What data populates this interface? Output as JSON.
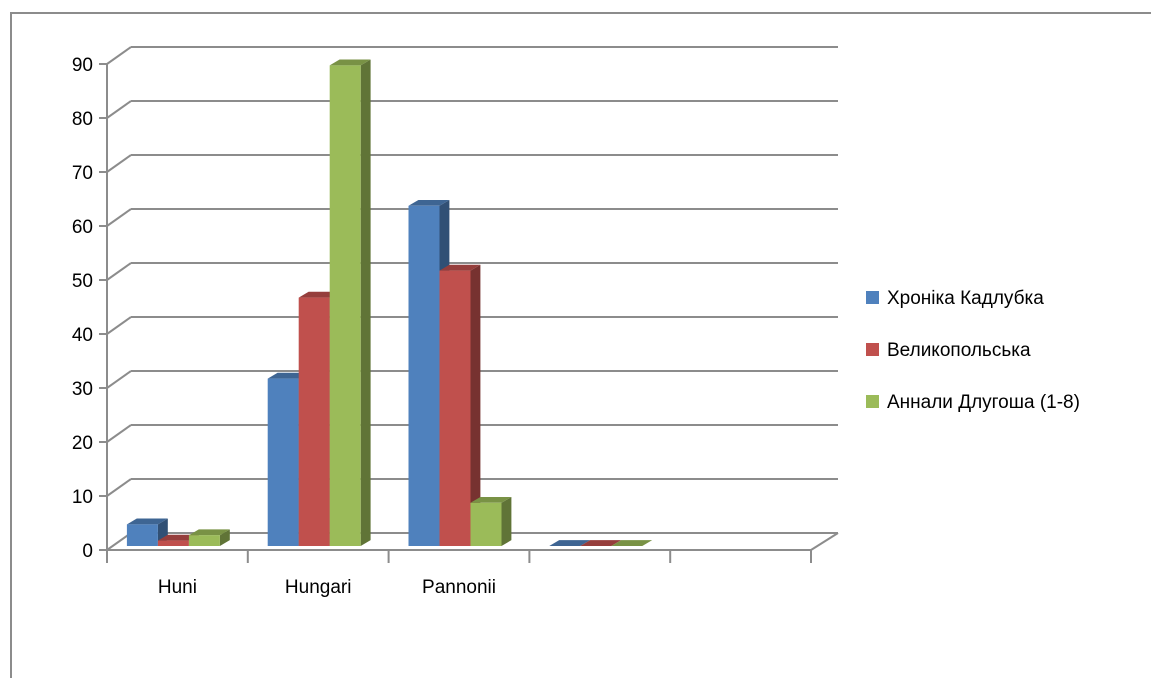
{
  "chart_data": {
    "type": "bar",
    "categories": [
      "Huni",
      "Hungari",
      "Pannonii",
      "",
      ""
    ],
    "series": [
      {
        "name": "Хроніка Кадлубка",
        "values": [
          4,
          31,
          63,
          0,
          null
        ],
        "color": "#4f81bd"
      },
      {
        "name": "Великопольська",
        "values": [
          1,
          46,
          51,
          0,
          null
        ],
        "color": "#c0504d"
      },
      {
        "name": "Аннали Длугоша (1-8)",
        "values": [
          2,
          89,
          8,
          0,
          null
        ],
        "color": "#9bbb59"
      }
    ],
    "yticks": [
      "0",
      "10",
      "20",
      "30",
      "40",
      "50",
      "60",
      "70",
      "80",
      "90"
    ],
    "ylim": [
      0,
      90
    ],
    "grid": true,
    "legend_position": "right",
    "style": "3d-clustered-column"
  }
}
